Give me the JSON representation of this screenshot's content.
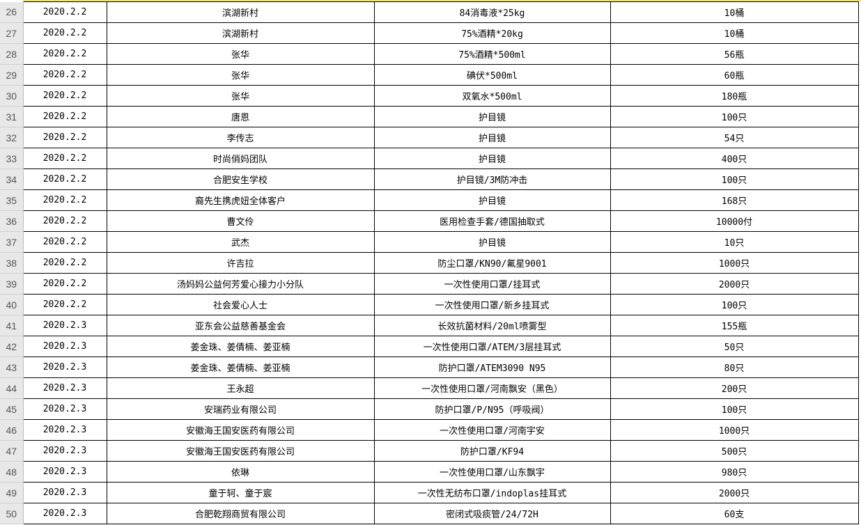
{
  "accent_color": "#f2e85a",
  "rows": [
    {
      "n": "26",
      "date": "2020.2.2",
      "donor": "滨湖新村",
      "item": "84消毒液*25kg",
      "qty": "10桶"
    },
    {
      "n": "27",
      "date": "2020.2.2",
      "donor": "滨湖新村",
      "item": "75%酒精*20kg",
      "qty": "10桶"
    },
    {
      "n": "28",
      "date": "2020.2.2",
      "donor": "张华",
      "item": "75%酒精*500ml",
      "qty": "56瓶"
    },
    {
      "n": "29",
      "date": "2020.2.2",
      "donor": "张华",
      "item": "碘伏*500ml",
      "qty": "60瓶"
    },
    {
      "n": "30",
      "date": "2020.2.2",
      "donor": "张华",
      "item": "双氧水*500ml",
      "qty": "180瓶"
    },
    {
      "n": "31",
      "date": "2020.2.2",
      "donor": "唐恩",
      "item": "护目镜",
      "qty": "100只"
    },
    {
      "n": "32",
      "date": "2020.2.2",
      "donor": "李传志",
      "item": "护目镜",
      "qty": "54只"
    },
    {
      "n": "33",
      "date": "2020.2.2",
      "donor": "时尚俏妈团队",
      "item": "护目镜",
      "qty": "400只"
    },
    {
      "n": "34",
      "date": "2020.2.2",
      "donor": "合肥安生学校",
      "item": "护目镜/3M防冲击",
      "qty": "100只"
    },
    {
      "n": "35",
      "date": "2020.2.2",
      "donor": "裔先生携虎妞全体客户",
      "item": "护目镜",
      "qty": "168只"
    },
    {
      "n": "36",
      "date": "2020.2.2",
      "donor": "曹文伶",
      "item": "医用检查手套/德国抽取式",
      "qty": "10000付"
    },
    {
      "n": "37",
      "date": "2020.2.2",
      "donor": "武杰",
      "item": "护目镜",
      "qty": "10只"
    },
    {
      "n": "38",
      "date": "2020.2.2",
      "donor": "许吉拉",
      "item": "防尘口罩/KN90/氟星9001",
      "qty": "1000只"
    },
    {
      "n": "39",
      "date": "2020.2.2",
      "donor": "汤妈妈公益何芳爱心接力小分队",
      "item": "一次性使用口罩/挂耳式",
      "qty": "2000只"
    },
    {
      "n": "40",
      "date": "2020.2.2",
      "donor": "社会爱心人士",
      "item": "一次性使用口罩/新乡挂耳式",
      "qty": "100只"
    },
    {
      "n": "41",
      "date": "2020.2.3",
      "donor": "亚东会公益慈善基金会",
      "item": "长效抗菌材料/20ml喷雾型",
      "qty": "155瓶"
    },
    {
      "n": "42",
      "date": "2020.2.3",
      "donor": "姜金珠、姜倩楠、姜亚楠",
      "item": "一次性使用口罩/ATEM/3层挂耳式",
      "qty": "50只"
    },
    {
      "n": "43",
      "date": "2020.2.3",
      "donor": "姜金珠、姜倩楠、姜亚楠",
      "item": "防护口罩/ATEM3090  N95",
      "qty": "80只"
    },
    {
      "n": "44",
      "date": "2020.2.3",
      "donor": "王永超",
      "item": "一次性使用口罩/河南飘安（黑色）",
      "qty": "200只"
    },
    {
      "n": "45",
      "date": "2020.2.3",
      "donor": "安瑞药业有限公司",
      "item": "防护口罩/P/N95（呼吸阀）",
      "qty": "100只"
    },
    {
      "n": "46",
      "date": "2020.2.3",
      "donor": "安徽海王国安医药有限公司",
      "item": "一次性使用口罩/河南宇安",
      "qty": "1000只"
    },
    {
      "n": "47",
      "date": "2020.2.3",
      "donor": "安徽海王国安医药有限公司",
      "item": "防护口罩/KF94",
      "qty": "500只"
    },
    {
      "n": "48",
      "date": "2020.2.3",
      "donor": "依琳",
      "item": "一次性使用口罩/山东飘宇",
      "qty": "980只"
    },
    {
      "n": "49",
      "date": "2020.2.3",
      "donor": "童于轲、童于宸",
      "item": "一次性无纺布口罩/indoplas挂耳式",
      "qty": "2000只"
    },
    {
      "n": "50",
      "date": "2020.2.3",
      "donor": "合肥乾翔商贸有限公司",
      "item": "密闭式吸痰管/24/72H",
      "qty": "60支"
    }
  ]
}
